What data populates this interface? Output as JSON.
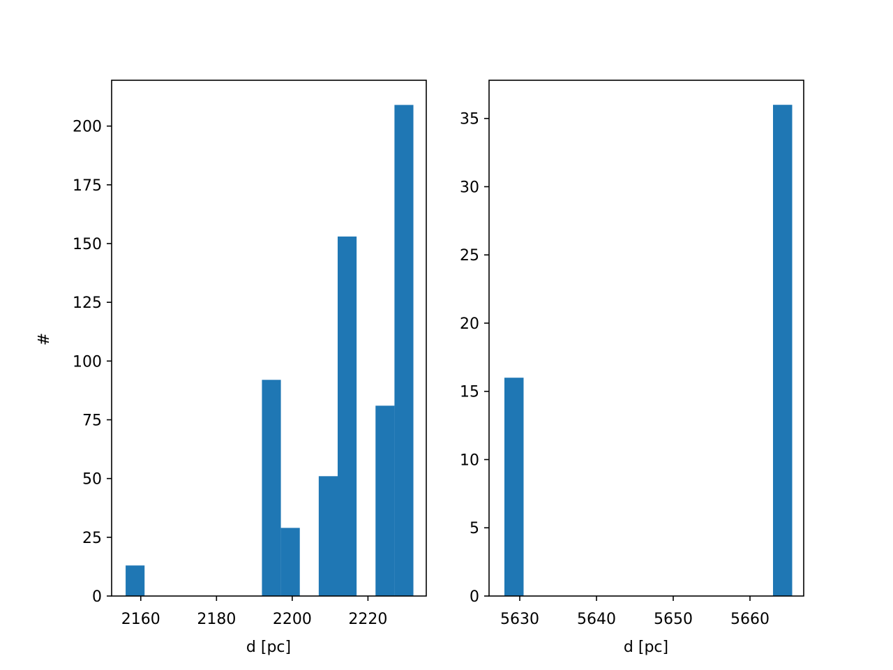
{
  "chart_data": [
    {
      "type": "histogram",
      "title": "",
      "xlabel": "d [pc]",
      "ylabel": "#",
      "xlim": [
        2152.3,
        2235.4
      ],
      "ylim": [
        0,
        219.5
      ],
      "xticks": [
        2160,
        2180,
        2200,
        2220
      ],
      "yticks": [
        0,
        25,
        50,
        75,
        100,
        125,
        150,
        175,
        200
      ],
      "bin_width": 5.0,
      "bars": [
        {
          "x0": 2156.0,
          "x1": 2161.0,
          "count": 13
        },
        {
          "x0": 2192.0,
          "x1": 2197.0,
          "count": 92
        },
        {
          "x0": 2197.0,
          "x1": 2202.0,
          "count": 29
        },
        {
          "x0": 2207.0,
          "x1": 2212.0,
          "count": 51
        },
        {
          "x0": 2212.0,
          "x1": 2217.0,
          "count": 153
        },
        {
          "x0": 2222.0,
          "x1": 2227.0,
          "count": 81
        },
        {
          "x0": 2227.0,
          "x1": 2232.0,
          "count": 209
        }
      ],
      "color": "#1f77b4",
      "grid": false
    },
    {
      "type": "histogram",
      "title": "",
      "xlabel": "d [pc]",
      "ylabel": "",
      "xlim": [
        5626.0,
        5667.0
      ],
      "ylim": [
        0,
        37.8
      ],
      "xticks": [
        5630,
        5640,
        5650,
        5660
      ],
      "yticks": [
        0,
        5,
        10,
        15,
        20,
        25,
        30,
        35
      ],
      "bin_width": 2.5,
      "bars": [
        {
          "x0": 5628.0,
          "x1": 5630.5,
          "count": 16
        },
        {
          "x0": 5663.0,
          "x1": 5665.5,
          "count": 36
        }
      ],
      "color": "#1f77b4",
      "grid": false
    }
  ]
}
